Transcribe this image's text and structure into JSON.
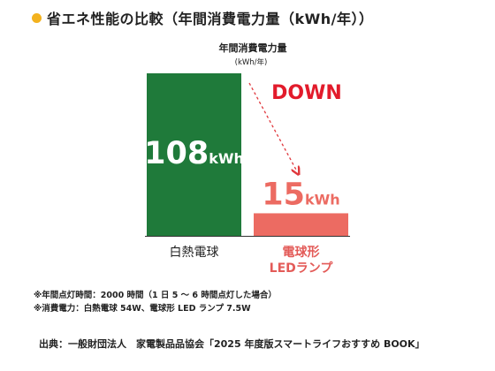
{
  "heading": {
    "title": "省エネ性能の比較（年間消費電力量（kWh/年））"
  },
  "chart_data": {
    "type": "bar",
    "title": "省エネ性能の比較（年間消費電力量（kWh/年））",
    "ylabel": "年間消費電力量",
    "yunit": "(kWh/年)",
    "unit": "kWh",
    "categories": [
      "白熱電球",
      "電球形\nLEDランプ"
    ],
    "values": [
      108,
      15
    ],
    "ylim": [
      0,
      108
    ],
    "annotation": "DOWN",
    "grid": false,
    "legend": "none"
  },
  "notes": [
    "※年間点灯時間：2000 時間（1 日 5 ～ 6 時間点灯した場合）",
    "※消費電力：白熱電球 54W、電球形 LED ランプ 7.5W"
  ],
  "source": "出典：一般財団法人　家電製品品協会「2025 年度版スマートライフおすすめ BOOK」",
  "colors": {
    "bullet": "#f3b21e",
    "bar_incandescent": "#1f7a3a",
    "bar_led": "#ec6b62",
    "led_label": "#e35b58",
    "down_text": "#e21b2b",
    "arrow": "#e0383d",
    "bar_value_incandescent": "#ffffff",
    "bar_value_led": "#ec6b62"
  }
}
